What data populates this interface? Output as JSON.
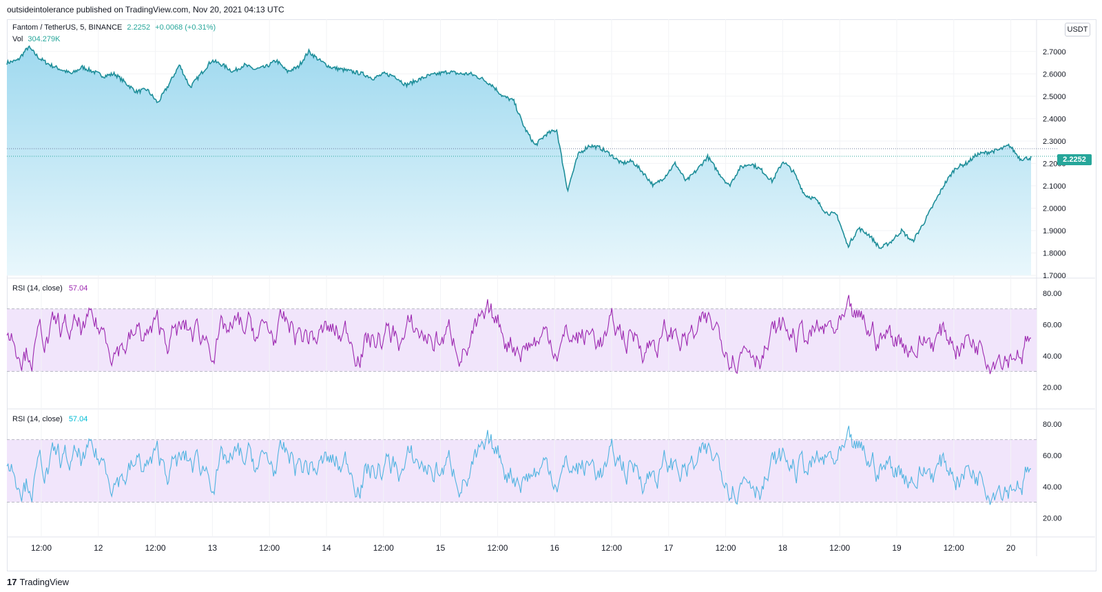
{
  "header": {
    "text": "outsideintolerance published on TradingView.com, Nov 20, 2021 04:13 UTC"
  },
  "legend": {
    "symbol": "Fantom / TetherUS, 5, BINANCE",
    "price": "2.2252",
    "change": "+0.0068 (+0.31%)",
    "vol_label": "Vol",
    "vol_value": "304.279K",
    "rsi1_label": "RSI (14, close)",
    "rsi1_value": "57.04",
    "rsi2_label": "RSI (14, close)",
    "rsi2_value": "57.04"
  },
  "unit": "USDT",
  "last_price_tag": "2.2252",
  "logo": {
    "mark": "17",
    "text": "TradingView"
  },
  "colors": {
    "price_line": "#1e8e99",
    "area_top": "#a8def0",
    "rsi1": "#9c27b0",
    "rsi2": "#4fb3e0",
    "band": "#f1e5fb"
  },
  "chart_data": [
    {
      "type": "area",
      "x_ticks": [
        "12:00",
        "12",
        "12:00",
        "13",
        "12:00",
        "14",
        "12:00",
        "15",
        "12:00",
        "16",
        "12:00",
        "17",
        "12:00",
        "18",
        "12:00",
        "19",
        "12:00",
        "20"
      ],
      "y_ticks": [
        "2.7000",
        "2.6000",
        "2.5000",
        "2.4000",
        "2.3000",
        "2.2000",
        "2.1000",
        "2.0000",
        "1.9000",
        "1.8000",
        "1.7000"
      ],
      "ylim": [
        1.7,
        2.73
      ],
      "series": [
        {
          "values": [
            2.65,
            2.66,
            2.72,
            2.67,
            2.64,
            2.62,
            2.6,
            2.63,
            2.61,
            2.59,
            2.6,
            2.56,
            2.52,
            2.53,
            2.47,
            2.55,
            2.64,
            2.54,
            2.6,
            2.66,
            2.64,
            2.61,
            2.64,
            2.62,
            2.63,
            2.66,
            2.61,
            2.63,
            2.7,
            2.66,
            2.63,
            2.62,
            2.61,
            2.6,
            2.58,
            2.6,
            2.59,
            2.55,
            2.57,
            2.59,
            2.6,
            2.61,
            2.6,
            2.6,
            2.58,
            2.55,
            2.5,
            2.48,
            2.36,
            2.28,
            2.33,
            2.35,
            2.08,
            2.24,
            2.28,
            2.27,
            2.24,
            2.2,
            2.21,
            2.16,
            2.1,
            2.14,
            2.2,
            2.12,
            2.17,
            2.23,
            2.16,
            2.1,
            2.18,
            2.2,
            2.17,
            2.12,
            2.21,
            2.16,
            2.06,
            2.04,
            1.98,
            1.97,
            1.83,
            1.91,
            1.88,
            1.82,
            1.85,
            1.9,
            1.85,
            1.93,
            2.02,
            2.11,
            2.18,
            2.2,
            2.24,
            2.25,
            2.26,
            2.28,
            2.22,
            2.225
          ]
        }
      ],
      "volume": "bars"
    },
    {
      "type": "line",
      "title": "RSI (14, close)",
      "y_ticks": [
        "80.00",
        "60.00",
        "40.00",
        "20.00"
      ],
      "ylim": [
        10,
        87
      ],
      "band": [
        30,
        70
      ]
    },
    {
      "type": "line",
      "title": "RSI (14, close)",
      "y_ticks": [
        "80.00",
        "60.00",
        "40.00",
        "20.00"
      ],
      "ylim": [
        10,
        87
      ],
      "band": [
        30,
        70
      ]
    }
  ]
}
